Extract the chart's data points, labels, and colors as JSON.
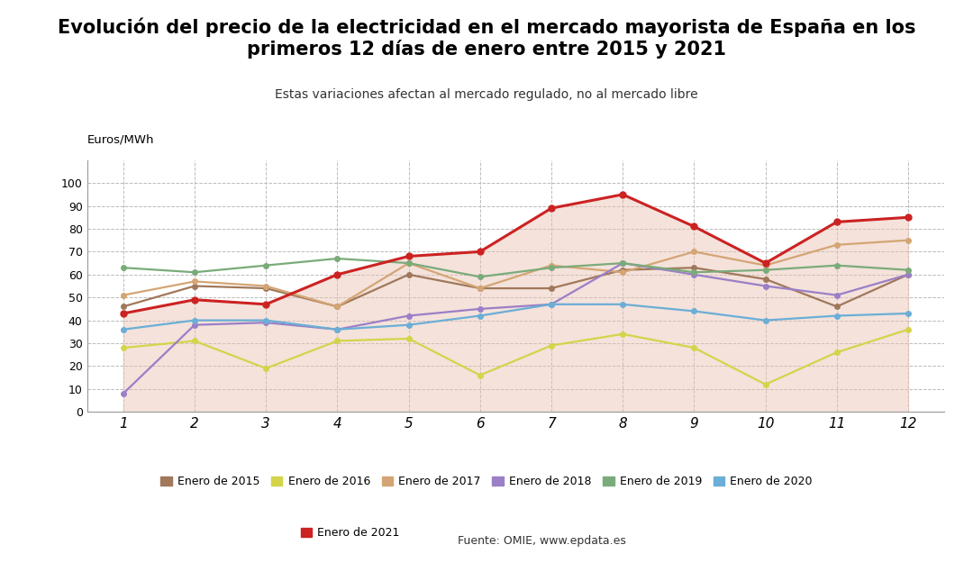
{
  "title": "Evolución del precio de la electricidad en el mercado mayorista de España en los\nprimeros 12 días de enero entre 2015 y 2021",
  "subtitle": "Estas variaciones afectan al mercado regulado, no al mercado libre",
  "ylabel": "Euros/MWh",
  "source": "Fuente: OMIE, www.epdata.es",
  "days": [
    1,
    2,
    3,
    4,
    5,
    6,
    7,
    8,
    9,
    10,
    11,
    12
  ],
  "series": {
    "Enero de 2015": {
      "values": [
        46,
        55,
        54,
        46,
        60,
        54,
        54,
        62,
        63,
        58,
        46,
        60
      ],
      "color": "#a0785a"
    },
    "Enero de 2016": {
      "values": [
        28,
        31,
        19,
        31,
        32,
        16,
        29,
        34,
        28,
        12,
        26,
        36
      ],
      "color": "#d4d44a"
    },
    "Enero de 2017": {
      "values": [
        51,
        57,
        55,
        46,
        65,
        54,
        64,
        61,
        70,
        64,
        73,
        75
      ],
      "color": "#d4a574"
    },
    "Enero de 2018": {
      "values": [
        8,
        38,
        39,
        36,
        42,
        45,
        47,
        65,
        60,
        55,
        51,
        60
      ],
      "color": "#9b7fc7"
    },
    "Enero de 2019": {
      "values": [
        63,
        61,
        64,
        67,
        65,
        59,
        63,
        65,
        61,
        62,
        64,
        62
      ],
      "color": "#7aab7a"
    },
    "Enero de 2020": {
      "values": [
        36,
        40,
        40,
        36,
        38,
        42,
        47,
        47,
        44,
        40,
        42,
        43
      ],
      "color": "#6baed6"
    },
    "Enero de 2021": {
      "values": [
        43,
        49,
        47,
        60,
        68,
        70,
        89,
        95,
        81,
        65,
        83,
        85
      ],
      "color": "#cc2222"
    }
  },
  "ylim": [
    0,
    110
  ],
  "yticks": [
    0,
    10,
    20,
    30,
    40,
    50,
    60,
    70,
    80,
    90,
    100
  ],
  "fill_color": "#e8c0b0",
  "fill_alpha": 0.45,
  "bg_color": "white",
  "plot_bg": "white",
  "grid_color": "#bbbbbb",
  "grid_style": "--",
  "title_fontsize": 15,
  "subtitle_fontsize": 10,
  "legend_fontsize": 9
}
